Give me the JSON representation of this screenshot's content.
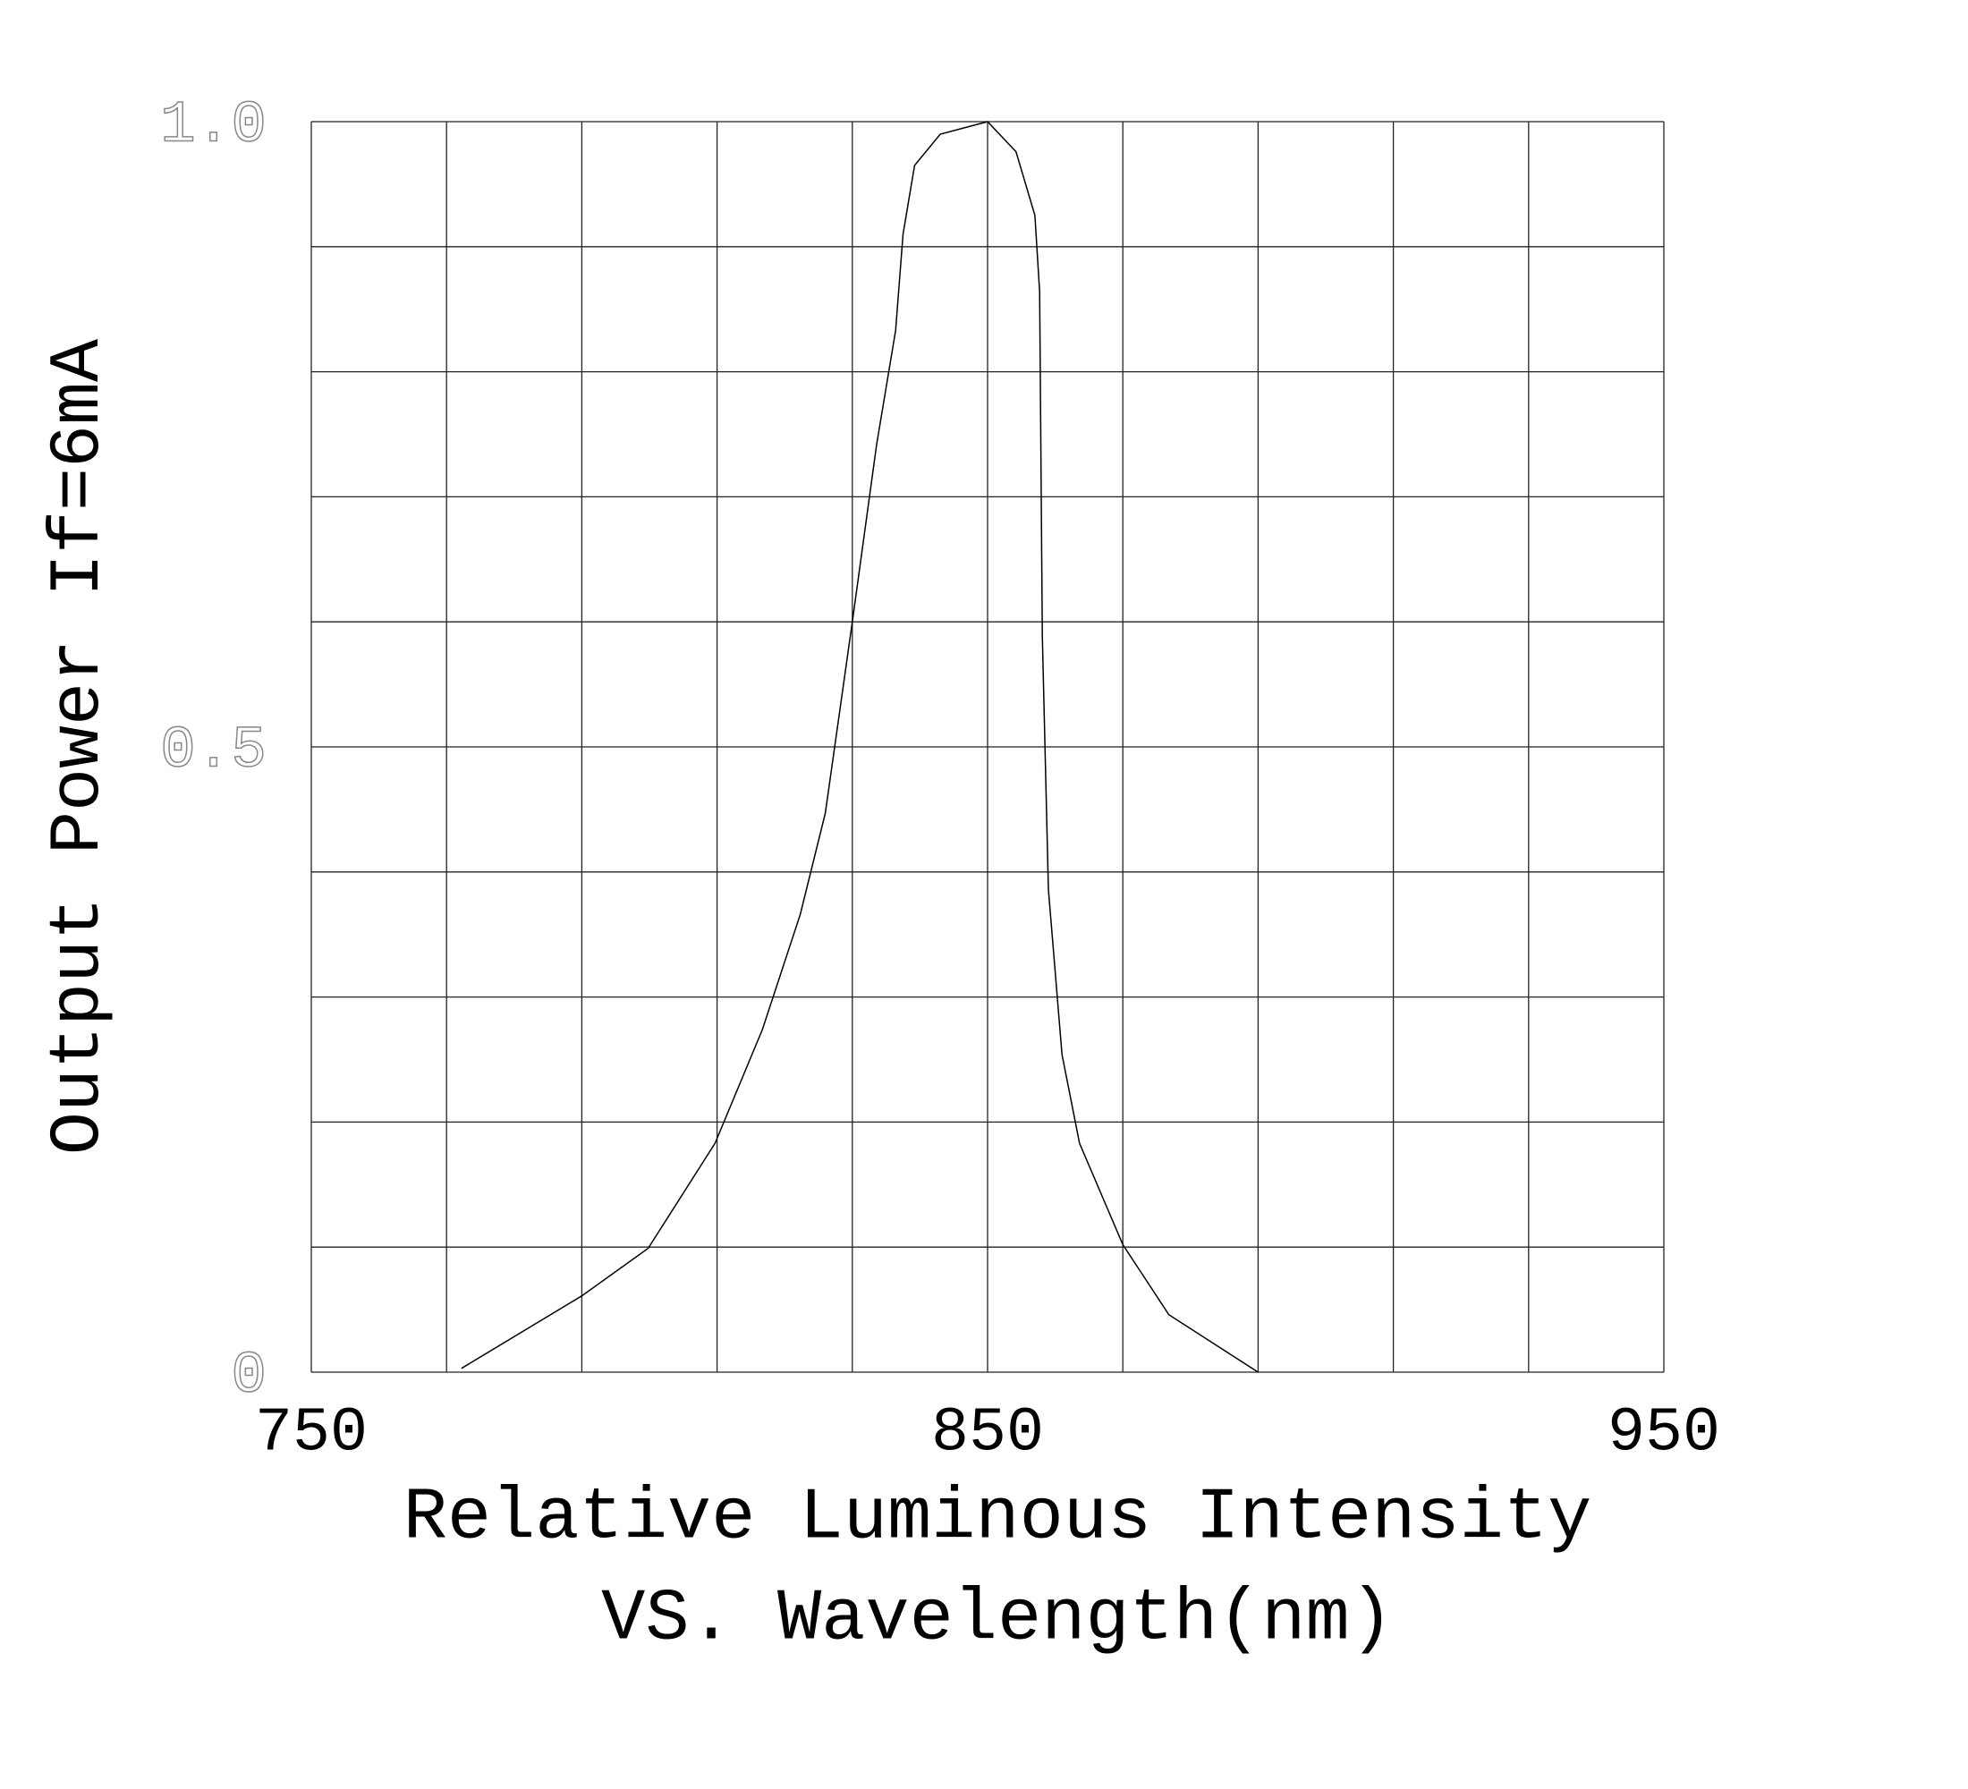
{
  "chart_data": {
    "type": "line",
    "xlabel": [
      "Relative Luminous Intensity",
      "VS. Wavelength(nm)"
    ],
    "ylabel": "Output Power If=6mA",
    "x": [
      772.2,
      790,
      799.8,
      809.7,
      816.7,
      822.3,
      826,
      830,
      833.6,
      836.4,
      837.5,
      839.2,
      843,
      850,
      854.2,
      857,
      857.7,
      858.1,
      859,
      861,
      863.6,
      870,
      876.8,
      890
    ],
    "values": [
      0.003,
      0.061,
      0.099,
      0.183,
      0.274,
      0.366,
      0.447,
      0.6,
      0.742,
      0.833,
      0.91,
      0.965,
      0.99,
      1.0,
      0.976,
      0.925,
      0.864,
      0.589,
      0.386,
      0.254,
      0.183,
      0.102,
      0.046,
      0
    ],
    "color": "#000000",
    "xlim": [
      750,
      950
    ],
    "ylim": [
      0,
      1
    ],
    "xticks": [
      750,
      850,
      950
    ],
    "yticks": [
      0,
      0.5,
      {
        "value": 1,
        "label": "1.0"
      }
    ],
    "grid": true,
    "xgrid": [
      750,
      770,
      790,
      810,
      830,
      850,
      870,
      890,
      910,
      930,
      950
    ],
    "ygrid": [
      0,
      0.1,
      0.2,
      0.3,
      0.4,
      0.5,
      0.6,
      0.7,
      0.8,
      0.9,
      1
    ]
  }
}
